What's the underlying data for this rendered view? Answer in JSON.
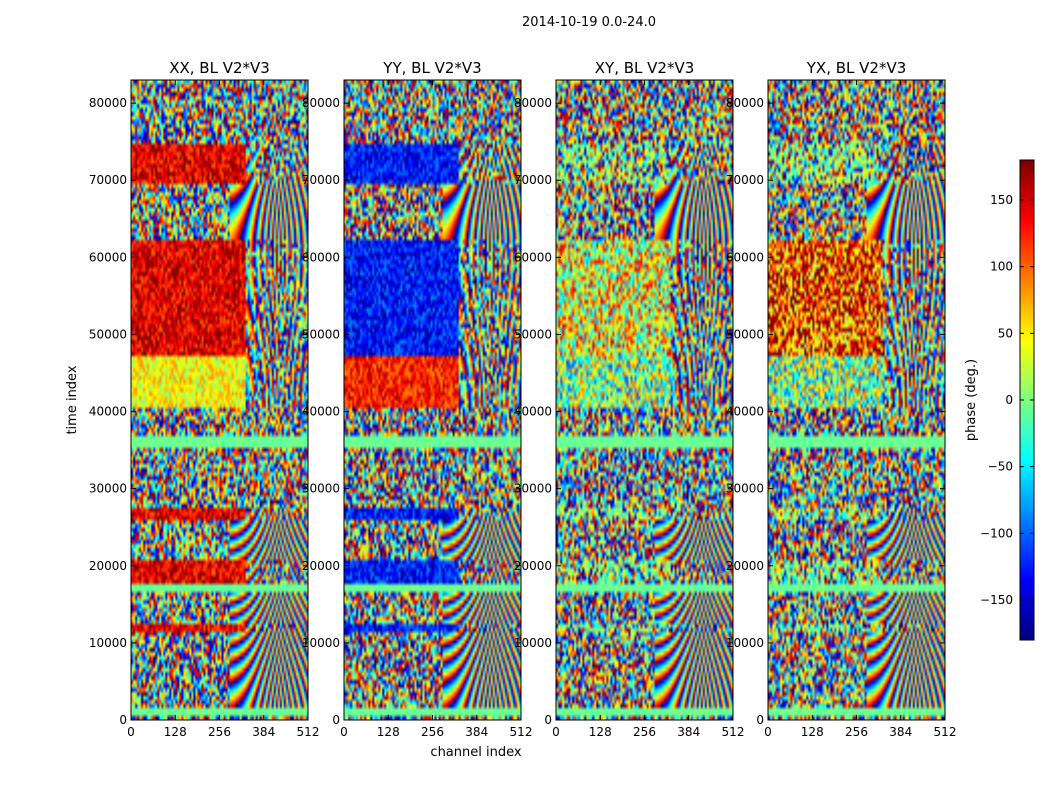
{
  "chart_data": {
    "type": "heatmap",
    "suptitle": "2014-10-19 0.0-24.0",
    "xlabel": "channel index",
    "ylabel": "time index",
    "xlim": [
      0,
      512
    ],
    "ylim": [
      0,
      83000
    ],
    "xticks": [
      0,
      128,
      256,
      384,
      512
    ],
    "yticks": [
      0,
      10000,
      20000,
      30000,
      40000,
      50000,
      60000,
      70000,
      80000
    ],
    "colormap": "jet",
    "panels": [
      {
        "title": "XX, BL V2*V3",
        "pol": "XX",
        "mode": "warm"
      },
      {
        "title": "YY, BL V2*V3",
        "pol": "YY",
        "mode": "cold"
      },
      {
        "title": "XY, BL V2*V3",
        "pol": "XY",
        "mode": "mild"
      },
      {
        "title": "YX, BL V2*V3",
        "pol": "YX",
        "mode": "weak"
      }
    ],
    "colorbar": {
      "label": "phase (deg.)",
      "vmin": -180,
      "vmax": 180,
      "ticks": [
        150,
        100,
        50,
        0,
        -50,
        -100,
        -150
      ],
      "tick_labels": [
        "150",
        "100",
        "50",
        "0",
        "−50",
        "−100",
        "−150"
      ]
    },
    "bands": [
      {
        "t0": 0,
        "t1": 700,
        "kind": "noise"
      },
      {
        "t0": 700,
        "t1": 1700,
        "kind": "flag"
      },
      {
        "t0": 1700,
        "t1": 11500,
        "kind": "fringe"
      },
      {
        "t0": 11500,
        "t1": 12700,
        "kind": "coherent"
      },
      {
        "t0": 12700,
        "t1": 16500,
        "kind": "fringe"
      },
      {
        "t0": 16500,
        "t1": 17500,
        "kind": "flag"
      },
      {
        "t0": 17500,
        "t1": 20500,
        "kind": "coherent"
      },
      {
        "t0": 20500,
        "t1": 26000,
        "kind": "fringe"
      },
      {
        "t0": 26000,
        "t1": 27500,
        "kind": "coherent"
      },
      {
        "t0": 27500,
        "t1": 35500,
        "kind": "noise"
      },
      {
        "t0": 35500,
        "t1": 37000,
        "kind": "flag"
      },
      {
        "t0": 37000,
        "t1": 40500,
        "kind": "noise"
      },
      {
        "t0": 40500,
        "t1": 47000,
        "kind": "strongB"
      },
      {
        "t0": 47000,
        "t1": 62000,
        "kind": "strong"
      },
      {
        "t0": 62000,
        "t1": 69500,
        "kind": "fringe"
      },
      {
        "t0": 69500,
        "t1": 74500,
        "kind": "coherent"
      },
      {
        "t0": 74500,
        "t1": 83000,
        "kind": "noise"
      }
    ]
  }
}
